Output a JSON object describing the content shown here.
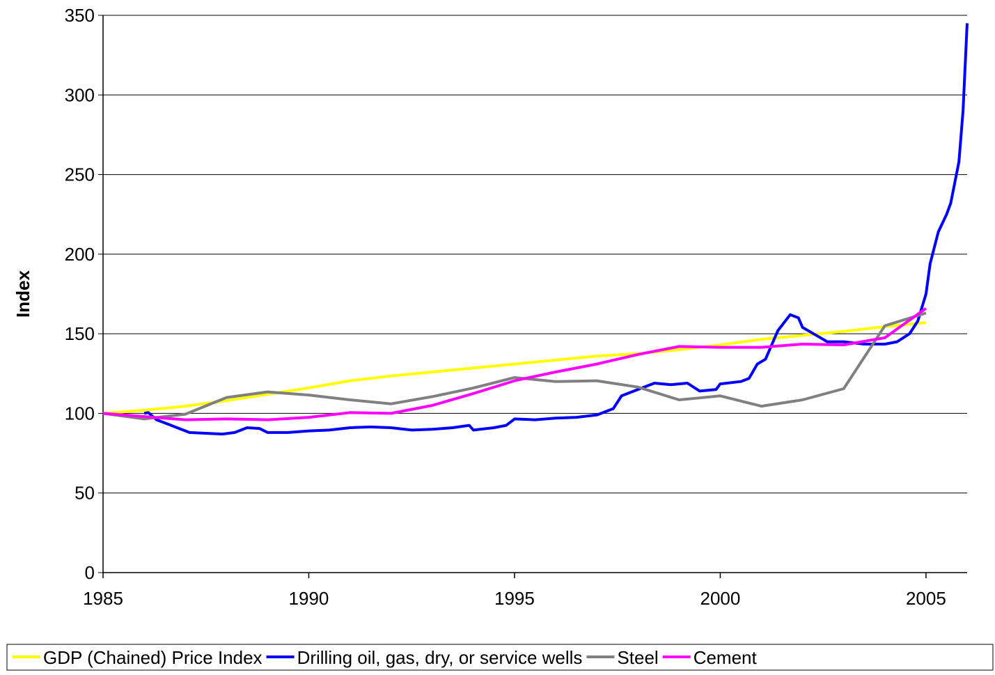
{
  "chart_data": {
    "type": "line",
    "y_label": "Index",
    "xlim": [
      1985,
      2006
    ],
    "xticks": [
      1985,
      1990,
      1995,
      2000,
      2005
    ],
    "ylim": [
      0,
      350
    ],
    "yticks": [
      0,
      50,
      100,
      150,
      200,
      250,
      300,
      350
    ],
    "grid": true,
    "legend": "bottom",
    "series": [
      {
        "name": "GDP (Chained) Price Index",
        "color": "#ffff00",
        "x": [
          1985,
          1986,
          1987,
          1988,
          1989,
          1990,
          1991,
          1992,
          1993,
          1994,
          1995,
          1996,
          1997,
          1998,
          1999,
          2000,
          2001,
          2002,
          2003,
          2004,
          2005
        ],
        "values": [
          100,
          102,
          104.5,
          108,
          112,
          116,
          120.5,
          123.5,
          126,
          128.5,
          131,
          133.5,
          136,
          137.5,
          140,
          143,
          146.5,
          149,
          151.5,
          154.5,
          157
        ]
      },
      {
        "name": "Drilling oil, gas, dry, or service wells",
        "color": "#0000ff",
        "x": [
          1986.0,
          1986.1,
          1986.3,
          1986.6,
          1986.9,
          1987.1,
          1987.5,
          1987.9,
          1988.2,
          1988.5,
          1988.8,
          1989.0,
          1989.5,
          1990.0,
          1990.5,
          1991.0,
          1991.5,
          1992.0,
          1992.5,
          1993.0,
          1993.5,
          1993.9,
          1994.0,
          1994.5,
          1994.8,
          1995.0,
          1995.5,
          1996.0,
          1996.5,
          1997.0,
          1997.4,
          1997.6,
          1998.0,
          1998.4,
          1998.8,
          1999.2,
          1999.5,
          1999.9,
          2000.0,
          2000.5,
          2000.7,
          2000.9,
          2001.1,
          2001.4,
          2001.7,
          2001.9,
          2002.0,
          2002.4,
          2002.6,
          2003.0,
          2003.5,
          2004.0,
          2004.3,
          2004.6,
          2004.8,
          2005.0,
          2005.1,
          2005.3,
          2005.5,
          2005.6,
          2005.8,
          2005.9,
          2006.0
        ],
        "values": [
          100,
          100.5,
          96,
          93,
          90,
          88,
          87.5,
          87,
          88,
          91,
          90.5,
          88,
          88,
          89,
          89.5,
          91,
          91.5,
          91,
          89.5,
          90,
          91,
          92.5,
          89.5,
          91,
          92.5,
          96.5,
          96,
          97,
          97.5,
          99,
          103,
          111,
          115,
          119,
          118,
          119,
          114,
          115,
          118.5,
          120,
          122,
          131,
          134,
          152,
          162,
          160,
          154,
          148,
          145,
          145,
          143.5,
          143.5,
          145,
          150,
          158,
          175,
          194,
          214,
          225,
          232,
          258,
          290,
          345
        ]
      },
      {
        "name": "Steel",
        "color": "#808080",
        "x": [
          1985,
          1986,
          1987,
          1988,
          1989,
          1990,
          1991,
          1992,
          1993,
          1994,
          1995,
          1996,
          1997,
          1998,
          1999,
          2000,
          2001,
          2002,
          2003,
          2004,
          2005
        ],
        "values": [
          100,
          96.5,
          99.5,
          110,
          113.5,
          111.5,
          108.5,
          106,
          110.5,
          116,
          122.5,
          120,
          120.5,
          116.5,
          108.5,
          111,
          104.5,
          108.5,
          115.5,
          155,
          163
        ]
      },
      {
        "name": "Cement",
        "color": "#ff00ff",
        "x": [
          1985,
          1986,
          1987,
          1988,
          1989,
          1990,
          1991,
          1992,
          1993,
          1994,
          1995,
          1996,
          1997,
          1998,
          1999,
          2000,
          2001,
          2002,
          2003,
          2004,
          2005
        ],
        "values": [
          100,
          98,
          96,
          96.5,
          96,
          97.5,
          100.5,
          100,
          105,
          112.5,
          120.5,
          126,
          131,
          137,
          142,
          141.5,
          141.5,
          143.5,
          143,
          147.5,
          166
        ]
      }
    ]
  }
}
